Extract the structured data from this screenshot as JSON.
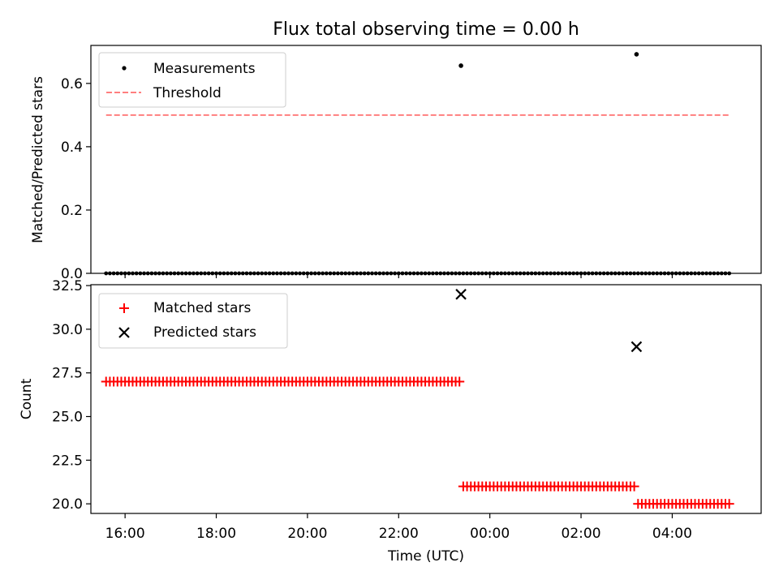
{
  "chart_data": [
    {
      "type": "scatter",
      "title": "Flux total observing time = 0.00 h",
      "xlabel": "",
      "ylabel": "Matched/Predicted stars",
      "x_unit": "hours",
      "xlim": [
        "15:15",
        "05:57"
      ],
      "ylim": [
        0,
        0.72
      ],
      "yticks": [
        "0.0",
        "0.2",
        "0.4",
        "0.6"
      ],
      "legend_position": "top-left",
      "grid": false,
      "series": [
        {
          "name": "Measurements",
          "marker": "dot",
          "color": "#000000",
          "segments": [
            {
              "start": "15:35",
              "end": "23:20",
              "step_min": 5,
              "value": 0.0
            },
            {
              "start": "23:25",
              "end": "03:10",
              "step_min": 5,
              "value": 0.0
            },
            {
              "start": "03:15",
              "end": "05:15",
              "step_min": 5,
              "value": 0.0
            }
          ],
          "points": [
            {
              "x": "23:22",
              "y": 0.656
            },
            {
              "x": "03:13",
              "y": 0.692
            }
          ]
        },
        {
          "name": "Threshold",
          "marker": "dashed-line",
          "color": "#ff7f7f",
          "x": [
            "15:35",
            "05:15"
          ],
          "y": [
            0.5,
            0.5
          ]
        }
      ]
    },
    {
      "type": "scatter",
      "title": "",
      "xlabel": "Time (UTC)",
      "ylabel": "Count",
      "xlim": [
        "15:15",
        "05:57"
      ],
      "ylim": [
        19.45,
        32.55
      ],
      "yticks": [
        "20.0",
        "22.5",
        "25.0",
        "27.5",
        "30.0",
        "32.5"
      ],
      "xticks": [
        "16:00",
        "18:00",
        "20:00",
        "22:00",
        "00:00",
        "02:00",
        "04:00"
      ],
      "legend_position": "top-left",
      "grid": false,
      "series": [
        {
          "name": "Matched stars",
          "marker": "plus",
          "color": "#ff0000",
          "segments": [
            {
              "start": "15:35",
              "end": "23:20",
              "step_min": 5,
              "value": 27
            },
            {
              "start": "23:25",
              "end": "03:10",
              "step_min": 5,
              "value": 21
            },
            {
              "start": "03:15",
              "end": "05:15",
              "step_min": 5,
              "value": 20
            }
          ]
        },
        {
          "name": "Predicted stars",
          "marker": "x",
          "color": "#000000",
          "points": [
            {
              "x": "23:22",
              "y": 32
            },
            {
              "x": "03:13",
              "y": 29
            }
          ]
        }
      ]
    }
  ]
}
